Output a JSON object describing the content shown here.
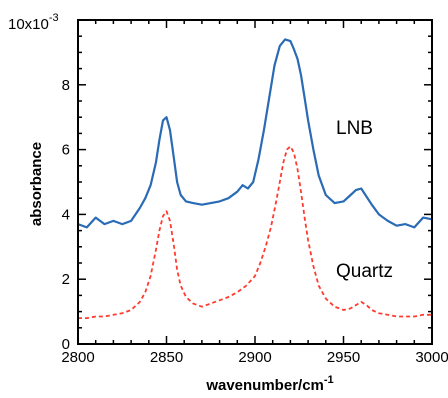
{
  "chart_data": {
    "type": "line",
    "title": "",
    "xlabel": "wavenumber/cm",
    "xlabel_superscript": "-1",
    "ylabel": "absorbance",
    "y_multiplier_base": "10x10",
    "y_multiplier_exp": "-3",
    "xlim": [
      2800,
      3000
    ],
    "ylim": [
      0,
      10
    ],
    "x_ticks": [
      2800,
      2850,
      2900,
      2950,
      3000
    ],
    "x_tick_labels": [
      "2800",
      "2850",
      "2900",
      "2950",
      "3000"
    ],
    "y_ticks": [
      0,
      2,
      4,
      6,
      8
    ],
    "y_tick_labels": [
      "0",
      "2",
      "4",
      "6",
      "8"
    ],
    "grid": false,
    "legend": "none",
    "series": [
      {
        "name": "LNB",
        "color": "#2a6bb5",
        "style": "solid",
        "x": [
          2800,
          2805,
          2810,
          2815,
          2820,
          2825,
          2830,
          2835,
          2838,
          2841,
          2844,
          2846,
          2848,
          2850,
          2852,
          2854,
          2856,
          2858,
          2861,
          2865,
          2870,
          2875,
          2880,
          2885,
          2890,
          2893,
          2896,
          2899,
          2902,
          2905,
          2908,
          2911,
          2914,
          2917,
          2920,
          2922,
          2924,
          2926,
          2928,
          2930,
          2933,
          2936,
          2940,
          2945,
          2950,
          2954,
          2957,
          2960,
          2963,
          2966,
          2970,
          2975,
          2980,
          2985,
          2990,
          2995,
          3000
        ],
        "y": [
          3.7,
          3.6,
          3.9,
          3.7,
          3.8,
          3.7,
          3.8,
          4.2,
          4.5,
          4.9,
          5.6,
          6.3,
          6.9,
          7.0,
          6.6,
          5.8,
          5.0,
          4.6,
          4.4,
          4.35,
          4.3,
          4.35,
          4.4,
          4.5,
          4.7,
          4.9,
          4.8,
          5.0,
          5.7,
          6.6,
          7.6,
          8.6,
          9.2,
          9.4,
          9.35,
          9.1,
          8.8,
          8.3,
          7.6,
          6.9,
          6.0,
          5.2,
          4.6,
          4.35,
          4.4,
          4.6,
          4.75,
          4.8,
          4.55,
          4.3,
          4.0,
          3.8,
          3.65,
          3.7,
          3.6,
          3.9,
          3.85
        ]
      },
      {
        "name": "Quartz",
        "color": "#ff3b2f",
        "style": "dashed",
        "x": [
          2800,
          2805,
          2810,
          2815,
          2820,
          2825,
          2830,
          2835,
          2838,
          2841,
          2844,
          2846,
          2848,
          2850,
          2852,
          2854,
          2856,
          2858,
          2861,
          2865,
          2870,
          2875,
          2880,
          2885,
          2890,
          2895,
          2900,
          2903,
          2906,
          2909,
          2912,
          2914,
          2916,
          2918,
          2920,
          2922,
          2924,
          2926,
          2928,
          2930,
          2933,
          2936,
          2940,
          2945,
          2950,
          2954,
          2957,
          2960,
          2963,
          2966,
          2970,
          2975,
          2980,
          2985,
          2990,
          2995,
          3000
        ],
        "y": [
          0.8,
          0.8,
          0.85,
          0.85,
          0.9,
          0.95,
          1.05,
          1.3,
          1.6,
          2.1,
          2.9,
          3.5,
          3.95,
          4.1,
          3.8,
          3.1,
          2.3,
          1.8,
          1.45,
          1.25,
          1.15,
          1.25,
          1.35,
          1.45,
          1.6,
          1.8,
          2.1,
          2.5,
          3.0,
          3.6,
          4.4,
          5.0,
          5.6,
          6.0,
          6.1,
          5.9,
          5.4,
          4.7,
          3.9,
          3.2,
          2.4,
          1.8,
          1.4,
          1.15,
          1.05,
          1.1,
          1.2,
          1.3,
          1.2,
          1.05,
          0.95,
          0.9,
          0.85,
          0.85,
          0.85,
          0.9,
          0.9
        ]
      }
    ]
  }
}
